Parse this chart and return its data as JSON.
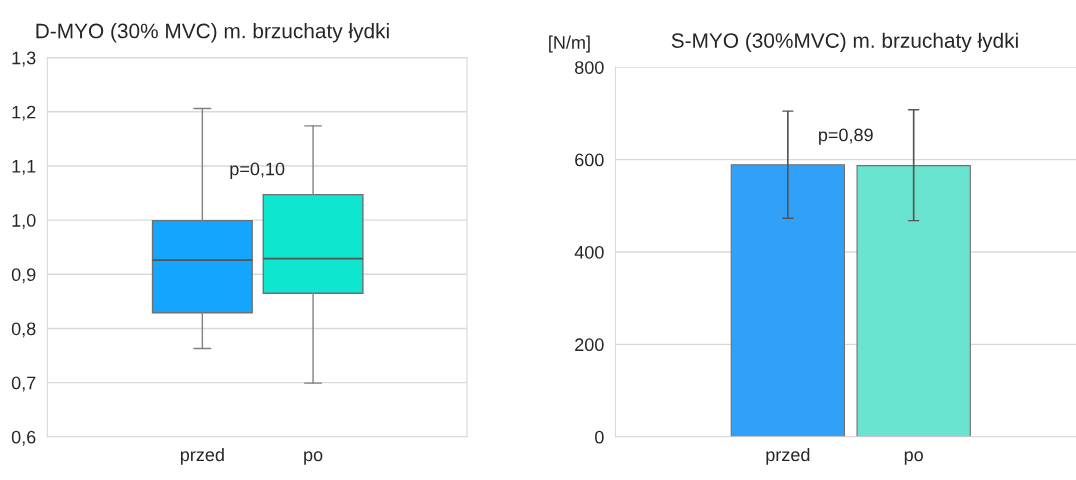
{
  "chart_data": [
    {
      "type": "box",
      "title": "D-MYO (30% MVC) m. brzuchaty łydki",
      "categories": [
        "przed",
        "po"
      ],
      "colors": [
        "#14a5ff",
        "#0ee6d0"
      ],
      "boxes": [
        {
          "low": 0.763,
          "q1": 0.829,
          "median": 0.926,
          "q3": 0.999,
          "high": 1.206
        },
        {
          "low": 0.699,
          "q1": 0.865,
          "median": 0.929,
          "q3": 1.047,
          "high": 1.174
        }
      ],
      "ylim": [
        0.6,
        1.3
      ],
      "yticks": [
        {
          "value": 0.6,
          "label": "0,6"
        },
        {
          "value": 0.7,
          "label": "0,7"
        },
        {
          "value": 0.8,
          "label": "0,8"
        },
        {
          "value": 0.9,
          "label": "0,9"
        },
        {
          "value": 1.0,
          "label": "1,0"
        },
        {
          "value": 1.1,
          "label": "1,1"
        },
        {
          "value": 1.2,
          "label": "1,2"
        },
        {
          "value": 1.3,
          "label": "1,3"
        }
      ],
      "grid": "y",
      "annotations": [
        "p=0,10"
      ]
    },
    {
      "type": "bar",
      "title": "S-MYO (30%MVC) m. brzuchaty łydki",
      "ylabel": "[N/m]",
      "categories": [
        "przed",
        "po"
      ],
      "values": [
        589,
        587
      ],
      "colors": [
        "#31a0f8",
        "#69e4d0"
      ],
      "errors": [
        [
          473,
          705
        ],
        [
          468,
          708
        ]
      ],
      "ylim": [
        0,
        800
      ],
      "yticks": [
        0,
        200,
        400,
        600,
        800
      ],
      "grid": "y",
      "annotations": [
        "p=0,89"
      ]
    }
  ]
}
